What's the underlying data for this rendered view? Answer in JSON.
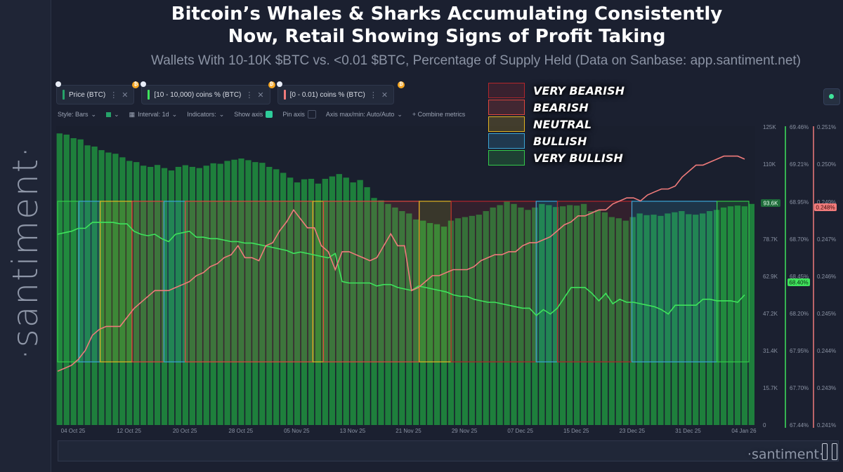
{
  "header": {
    "title_line1": "Bitcoin’s Whales & Sharks Accumulating Consistently",
    "title_line2": "Now, Retail Showing Signs of Profit Taking",
    "subtitle": "Wallets With 10-10K $BTC vs. <0.01 $BTC, Percentage of Supply Held (Data on Sanbase: app.santiment.net)"
  },
  "brand": {
    "vertical": "·santiment·",
    "bottom": "·santiment·"
  },
  "metrics": [
    {
      "label": "Price (BTC)",
      "color": "#26a269"
    },
    {
      "label": "[10 - 10,000) coins % (BTC)",
      "color": "#3fe35c"
    },
    {
      "label": "[0 - 0.01) coins % (BTC)",
      "color": "#f07b7b"
    }
  ],
  "toolbar": {
    "style": "Style: Bars",
    "interval": "Interval: 1d",
    "indicators": "Indicators:",
    "show_axis": "Show axis",
    "pin_axis": "Pin axis",
    "axis_minmax": "Axis max/min: Auto/Auto",
    "combine": "+ Combine metrics",
    "close_glyph": "✕",
    "menu_glyph": "⋮",
    "chevron_glyph": "⌄"
  },
  "legend": [
    {
      "label": "VERY BEARISH",
      "color": "#b3262c"
    },
    {
      "label": "BEARISH",
      "color": "#e0463d"
    },
    {
      "label": "NEUTRAL",
      "color": "#e3b321"
    },
    {
      "label": "BULLISH",
      "color": "#3ba6d6"
    },
    {
      "label": "VERY BULLISH",
      "color": "#33c94a"
    }
  ],
  "badges": {
    "price": "93.6K",
    "whales": "68.40%",
    "retail": "0.248%"
  },
  "chart_data": {
    "type": "bar",
    "x_ticks": [
      "04 Oct 25",
      "12 Oct 25",
      "20 Oct 25",
      "28 Oct 25",
      "05 Nov 25",
      "13 Nov 25",
      "21 Nov 25",
      "29 Nov 25",
      "07 Dec 25",
      "15 Dec 25",
      "23 Dec 25",
      "31 Dec 25",
      "04 Jan 26"
    ],
    "axis_price": {
      "ticks": [
        "125K",
        "110K",
        "93.6K",
        "78.7K",
        "62.9K",
        "47.2K",
        "31.4K",
        "15.7K",
        "0"
      ],
      "ylim": [
        0,
        125000
      ]
    },
    "axis_whales": {
      "ticks": [
        "69.46%",
        "69.21%",
        "68.95%",
        "68.70%",
        "68.45%",
        "68.20%",
        "67.95%",
        "67.70%",
        "67.44%"
      ],
      "ylim": [
        67.44,
        69.46
      ]
    },
    "axis_retail": {
      "ticks": [
        "0.251%",
        "0.250%",
        "0.249%",
        "0.247%",
        "0.246%",
        "0.245%",
        "0.244%",
        "0.243%",
        "0.241%"
      ],
      "ylim": [
        0.241,
        0.251
      ]
    },
    "series": [
      {
        "name": "Price (BTC)",
        "type": "bar",
        "color": "#1f8a3e",
        "values": [
          122000,
          121500,
          120000,
          119500,
          117000,
          116500,
          115000,
          114000,
          113500,
          112000,
          110500,
          110000,
          108500,
          108000,
          108800,
          107500,
          106500,
          108000,
          108700,
          108000,
          107500,
          108500,
          109500,
          109300,
          110500,
          111000,
          111500,
          110800,
          110000,
          109700,
          108000,
          107000,
          105500,
          103500,
          101500,
          102800,
          103000,
          101000,
          103000,
          104000,
          105000,
          103500,
          101500,
          102500,
          99500,
          95000,
          94000,
          92500,
          91000,
          89500,
          88500,
          86000,
          85500,
          84500,
          84000,
          83000,
          85500,
          86500,
          87000,
          87500,
          88000,
          89500,
          91000,
          92000,
          93500,
          92500,
          91000,
          90000,
          91000,
          92500,
          92000,
          91200,
          91500,
          92000,
          91800,
          92500,
          89500,
          90000,
          89000,
          87000,
          86500,
          85500,
          87000,
          88500,
          87800,
          88000,
          87500,
          88500,
          89000,
          89500,
          88200,
          88000,
          88500,
          89500,
          90000,
          91000,
          91500,
          91800,
          91500,
          92500
        ]
      },
      {
        "name": "[10 - 10,000) coins % (BTC)",
        "type": "line",
        "color": "#3fe35c",
        "values": [
          68.73,
          68.74,
          68.75,
          68.77,
          68.77,
          68.81,
          68.81,
          68.81,
          68.81,
          68.8,
          68.8,
          68.75,
          68.73,
          68.72,
          68.73,
          68.7,
          68.68,
          68.73,
          68.74,
          68.75,
          68.71,
          68.71,
          68.7,
          68.7,
          68.69,
          68.68,
          68.68,
          68.67,
          68.67,
          68.66,
          68.65,
          68.64,
          68.63,
          68.62,
          68.6,
          68.61,
          68.6,
          68.59,
          68.58,
          68.57,
          68.6,
          68.41,
          68.4,
          68.4,
          68.4,
          68.4,
          68.38,
          68.39,
          68.39,
          68.37,
          68.36,
          68.35,
          68.38,
          68.37,
          68.36,
          68.35,
          68.34,
          68.32,
          68.31,
          68.31,
          68.29,
          68.28,
          68.27,
          68.27,
          68.26,
          68.25,
          68.24,
          68.23,
          68.23,
          68.18,
          68.22,
          68.19,
          68.23,
          68.3,
          68.37,
          68.37,
          68.37,
          68.33,
          68.28,
          68.33,
          68.26,
          68.29,
          68.27,
          68.27,
          68.26,
          68.25,
          68.24,
          68.22,
          68.19,
          68.25,
          68.25,
          68.25,
          68.25,
          68.29,
          68.29,
          68.28,
          68.28,
          68.28,
          68.27,
          68.32
        ]
      },
      {
        "name": "[0 - 0.01) coins % (BTC)",
        "type": "line",
        "color": "#f07b7b",
        "values": [
          0.2428,
          0.2429,
          0.243,
          0.2432,
          0.2435,
          0.244,
          0.2442,
          0.2443,
          0.2443,
          0.2443,
          0.2446,
          0.2449,
          0.2451,
          0.2453,
          0.2455,
          0.2455,
          0.2455,
          0.2456,
          0.2457,
          0.2458,
          0.246,
          0.2461,
          0.2463,
          0.2464,
          0.2466,
          0.2467,
          0.247,
          0.2466,
          0.2466,
          0.2465,
          0.247,
          0.2471,
          0.2475,
          0.2478,
          0.2482,
          0.2479,
          0.2476,
          0.2476,
          0.247,
          0.2468,
          0.2462,
          0.2468,
          0.2468,
          0.2467,
          0.2466,
          0.2465,
          0.2466,
          0.247,
          0.2474,
          0.247,
          0.247,
          0.2455,
          0.2456,
          0.2458,
          0.246,
          0.246,
          0.2461,
          0.2462,
          0.2462,
          0.2462,
          0.2463,
          0.2465,
          0.2466,
          0.2467,
          0.2467,
          0.2468,
          0.2468,
          0.247,
          0.2471,
          0.2471,
          0.2472,
          0.2473,
          0.2475,
          0.2477,
          0.2478,
          0.248,
          0.248,
          0.2481,
          0.2482,
          0.2482,
          0.2484,
          0.2485,
          0.2486,
          0.2486,
          0.2485,
          0.2487,
          0.2488,
          0.2489,
          0.2489,
          0.249,
          0.2493,
          0.2495,
          0.2497,
          0.2497,
          0.2498,
          0.2499,
          0.25,
          0.25,
          0.25,
          0.2499
        ]
      }
    ],
    "sentiment_zones": [
      {
        "label": "VERY BULLISH",
        "start": 0,
        "end": 2
      },
      {
        "label": "BULLISH",
        "start": 2,
        "end": 4
      },
      {
        "label": "NEUTRAL",
        "start": 4,
        "end": 7
      },
      {
        "label": "BEARISH",
        "start": 7,
        "end": 10
      },
      {
        "label": "BULLISH",
        "start": 10,
        "end": 12
      },
      {
        "label": "BEARISH",
        "start": 12,
        "end": 24
      },
      {
        "label": "NEUTRAL",
        "start": 24,
        "end": 25
      },
      {
        "label": "BEARISH",
        "start": 25,
        "end": 34
      },
      {
        "label": "NEUTRAL",
        "start": 34,
        "end": 37
      },
      {
        "label": "VERY BEARISH",
        "start": 37,
        "end": 45
      },
      {
        "label": "BULLISH",
        "start": 45,
        "end": 47
      },
      {
        "label": "VERY BEARISH",
        "start": 47,
        "end": 54
      },
      {
        "label": "BULLISH",
        "start": 54,
        "end": 62
      },
      {
        "label": "VERY BULLISH",
        "start": 62,
        "end": 65
      }
    ],
    "zone_domain": 65,
    "grid": false,
    "legend_position": "top-center"
  }
}
